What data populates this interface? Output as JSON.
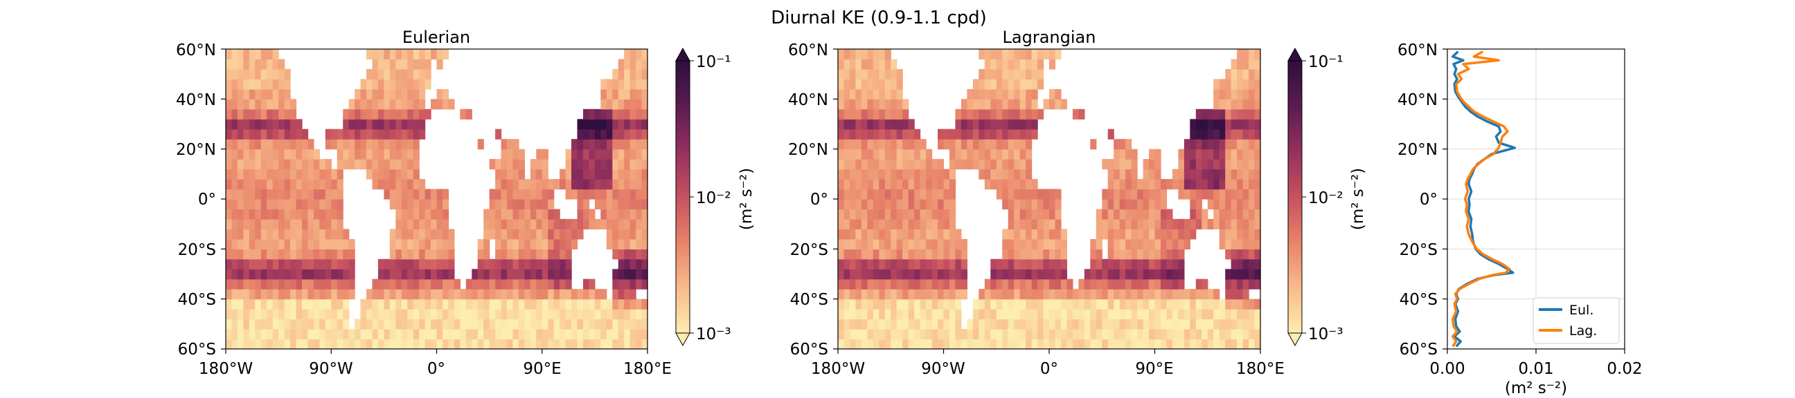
{
  "figure": {
    "suptitle": "Diurnal KE (0.9-1.1 cpd)"
  },
  "chart_data": [
    {
      "type": "heatmap",
      "title": "Eulerian",
      "x_ticks": [
        "180°W",
        "90°W",
        "0°",
        "90°E",
        "180°E"
      ],
      "x_tick_values": [
        -180,
        -90,
        0,
        90,
        180
      ],
      "y_ticks": [
        "60°S",
        "40°S",
        "20°S",
        "0°",
        "20°N",
        "40°N",
        "60°N"
      ],
      "y_tick_values": [
        -60,
        -40,
        -20,
        0,
        20,
        40,
        60
      ],
      "xlim": [
        -180,
        180
      ],
      "ylim": [
        -60,
        60
      ],
      "colorbar": {
        "label": "(m² s⁻²)",
        "scale": "log",
        "range": [
          0.001,
          0.1
        ],
        "tick_labels": [
          "10⁻³",
          "10⁻²",
          "10⁻¹"
        ],
        "colormap": "matter",
        "colors": [
          "#fdedb0",
          "#f8b98a",
          "#e8846a",
          "#c6515f",
          "#93315d",
          "#5c1c52",
          "#2f0f3d"
        ],
        "extend": "both"
      },
      "land_color": "#ffffff"
    },
    {
      "type": "heatmap",
      "title": "Lagrangian",
      "x_ticks": [
        "180°W",
        "90°W",
        "0°",
        "90°E",
        "180°E"
      ],
      "x_tick_values": [
        -180,
        -90,
        0,
        90,
        180
      ],
      "y_ticks": [
        "60°S",
        "40°S",
        "20°S",
        "0°",
        "20°N",
        "40°N",
        "60°N"
      ],
      "y_tick_values": [
        -60,
        -40,
        -20,
        0,
        20,
        40,
        60
      ],
      "xlim": [
        -180,
        180
      ],
      "ylim": [
        -60,
        60
      ],
      "colorbar": {
        "label": "(m² s⁻²)",
        "scale": "log",
        "range": [
          0.001,
          0.1
        ],
        "tick_labels": [
          "10⁻³",
          "10⁻²",
          "10⁻¹"
        ],
        "colormap": "matter",
        "colors": [
          "#fdedb0",
          "#f8b98a",
          "#e8846a",
          "#c6515f",
          "#93315d",
          "#5c1c52",
          "#2f0f3d"
        ],
        "extend": "both"
      },
      "land_color": "#ffffff"
    },
    {
      "type": "line",
      "title": "",
      "xlabel": "(m² s⁻²)",
      "ylabel": "",
      "xlim": [
        0,
        0.02
      ],
      "ylim": [
        -60,
        60
      ],
      "x_ticks": [
        "0.00",
        "0.01",
        "0.02"
      ],
      "x_tick_values": [
        0,
        0.01,
        0.02
      ],
      "y_ticks": [
        "60°S",
        "40°S",
        "20°S",
        "0°",
        "20°N",
        "40°N",
        "60°N"
      ],
      "y_tick_values": [
        -60,
        -40,
        -20,
        0,
        20,
        40,
        60
      ],
      "grid": true,
      "legend_position": "lower-right",
      "series": [
        {
          "name": "Eul.",
          "color": "#1f77b4",
          "points": [
            [
              0.001,
              -59
            ],
            [
              0.0015,
              -57
            ],
            [
              0.0008,
              -55
            ],
            [
              0.0014,
              -53
            ],
            [
              0.001,
              -51
            ],
            [
              0.0009,
              -48
            ],
            [
              0.0012,
              -45
            ],
            [
              0.0009,
              -42
            ],
            [
              0.0012,
              -40
            ],
            [
              0.001,
              -38
            ],
            [
              0.0013,
              -36
            ],
            [
              0.0022,
              -34
            ],
            [
              0.0034,
              -32
            ],
            [
              0.0052,
              -30.5
            ],
            [
              0.0074,
              -29.5
            ],
            [
              0.0068,
              -28
            ],
            [
              0.0058,
              -26
            ],
            [
              0.0046,
              -24
            ],
            [
              0.0037,
              -22
            ],
            [
              0.0032,
              -20
            ],
            [
              0.0029,
              -17
            ],
            [
              0.0028,
              -14
            ],
            [
              0.0026,
              -11
            ],
            [
              0.0027,
              -8
            ],
            [
              0.0024,
              -5
            ],
            [
              0.0025,
              -2
            ],
            [
              0.0024,
              0
            ],
            [
              0.0027,
              3
            ],
            [
              0.0024,
              6
            ],
            [
              0.0025,
              8
            ],
            [
              0.0028,
              10
            ],
            [
              0.003,
              12
            ],
            [
              0.0034,
              14
            ],
            [
              0.0042,
              16
            ],
            [
              0.005,
              18
            ],
            [
              0.0076,
              20.5
            ],
            [
              0.0058,
              22.5
            ],
            [
              0.0055,
              25
            ],
            [
              0.006,
              27
            ],
            [
              0.0058,
              29
            ],
            [
              0.0045,
              31
            ],
            [
              0.0034,
              33
            ],
            [
              0.0026,
              35
            ],
            [
              0.002,
              37
            ],
            [
              0.0016,
              39
            ],
            [
              0.0012,
              41
            ],
            [
              0.0009,
              43
            ],
            [
              0.0008,
              46
            ],
            [
              0.0011,
              48
            ],
            [
              0.0008,
              50
            ],
            [
              0.001,
              52
            ],
            [
              0.0007,
              54
            ],
            [
              0.0018,
              55.5
            ],
            [
              0.0006,
              57
            ],
            [
              0.0012,
              59
            ]
          ]
        },
        {
          "name": "Lag.",
          "color": "#ff7f0e",
          "points": [
            [
              0.0006,
              -59
            ],
            [
              0.001,
              -57
            ],
            [
              0.0006,
              -55
            ],
            [
              0.0011,
              -53
            ],
            [
              0.0007,
              -51
            ],
            [
              0.0006,
              -48
            ],
            [
              0.001,
              -45
            ],
            [
              0.0008,
              -42
            ],
            [
              0.0011,
              -40
            ],
            [
              0.0009,
              -38
            ],
            [
              0.0014,
              -36
            ],
            [
              0.0024,
              -34
            ],
            [
              0.0036,
              -32
            ],
            [
              0.005,
              -30.5
            ],
            [
              0.0066,
              -29.5
            ],
            [
              0.007,
              -28
            ],
            [
              0.0062,
              -26
            ],
            [
              0.005,
              -24
            ],
            [
              0.004,
              -22
            ],
            [
              0.0033,
              -20
            ],
            [
              0.0028,
              -17
            ],
            [
              0.0024,
              -14
            ],
            [
              0.0022,
              -11
            ],
            [
              0.0024,
              -8
            ],
            [
              0.0021,
              -5
            ],
            [
              0.0022,
              -2
            ],
            [
              0.002,
              0
            ],
            [
              0.0023,
              3
            ],
            [
              0.0021,
              6
            ],
            [
              0.0023,
              8
            ],
            [
              0.0026,
              10
            ],
            [
              0.0029,
              12
            ],
            [
              0.0035,
              14
            ],
            [
              0.0042,
              16
            ],
            [
              0.0052,
              18
            ],
            [
              0.0058,
              20.5
            ],
            [
              0.006,
              22.5
            ],
            [
              0.0062,
              25
            ],
            [
              0.0068,
              27
            ],
            [
              0.0064,
              29
            ],
            [
              0.0052,
              31
            ],
            [
              0.004,
              33
            ],
            [
              0.003,
              35
            ],
            [
              0.0024,
              37
            ],
            [
              0.0018,
              39
            ],
            [
              0.0014,
              41
            ],
            [
              0.0011,
              43
            ],
            [
              0.001,
              46
            ],
            [
              0.0016,
              48
            ],
            [
              0.0012,
              50
            ],
            [
              0.0024,
              52
            ],
            [
              0.0018,
              54
            ],
            [
              0.0058,
              55.5
            ],
            [
              0.003,
              57
            ],
            [
              0.004,
              59
            ]
          ]
        }
      ]
    }
  ]
}
